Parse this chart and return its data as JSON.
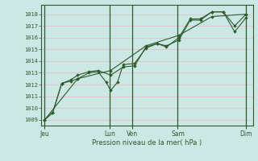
{
  "bg_color": "#cce8e4",
  "grid_color": "#e8b8bc",
  "line_color": "#2d5a2d",
  "xlabel": "Pression niveau de la mer( hPa )",
  "ylim": [
    1008.5,
    1018.8
  ],
  "yticks": [
    1009,
    1010,
    1011,
    1012,
    1013,
    1014,
    1015,
    1016,
    1017,
    1018
  ],
  "xlim": [
    0,
    9.3
  ],
  "day_ticks_pos": [
    0.15,
    3.0,
    4.0,
    6.0,
    9.0
  ],
  "day_labels": [
    "Jeu",
    "Lun",
    "Ven",
    "Sam",
    "Dim"
  ],
  "day_vlines": [
    0.15,
    3.0,
    4.0,
    6.0,
    9.0
  ],
  "series1_x": [
    0.15,
    0.5,
    0.9,
    1.3,
    1.6,
    2.1,
    2.5,
    2.85,
    3.05,
    3.35,
    3.6,
    4.1,
    4.6,
    5.1,
    5.5,
    6.05,
    6.55,
    7.0,
    7.5,
    8.0,
    8.5,
    9.0
  ],
  "series1_y": [
    1009.0,
    1009.6,
    1012.1,
    1012.3,
    1012.5,
    1013.0,
    1013.1,
    1012.2,
    1011.5,
    1012.2,
    1013.7,
    1013.8,
    1015.1,
    1015.5,
    1015.3,
    1015.8,
    1017.5,
    1017.5,
    1018.2,
    1018.2,
    1017.0,
    1018.0
  ],
  "series2_x": [
    0.15,
    0.5,
    0.9,
    1.3,
    1.6,
    2.1,
    2.5,
    3.05,
    3.6,
    4.1,
    4.6,
    5.1,
    5.5,
    6.05,
    6.55,
    7.0,
    7.5,
    8.0,
    8.5,
    9.0
  ],
  "series2_y": [
    1009.0,
    1009.6,
    1012.1,
    1012.4,
    1012.8,
    1013.1,
    1013.2,
    1012.8,
    1013.5,
    1013.6,
    1015.2,
    1015.5,
    1015.2,
    1016.0,
    1017.6,
    1017.6,
    1018.2,
    1018.2,
    1016.5,
    1017.7
  ],
  "series3_x": [
    0.15,
    1.6,
    3.05,
    4.6,
    6.05,
    7.5,
    9.0
  ],
  "series3_y": [
    1009.0,
    1012.5,
    1013.2,
    1015.3,
    1016.2,
    1017.8,
    1018.0
  ]
}
